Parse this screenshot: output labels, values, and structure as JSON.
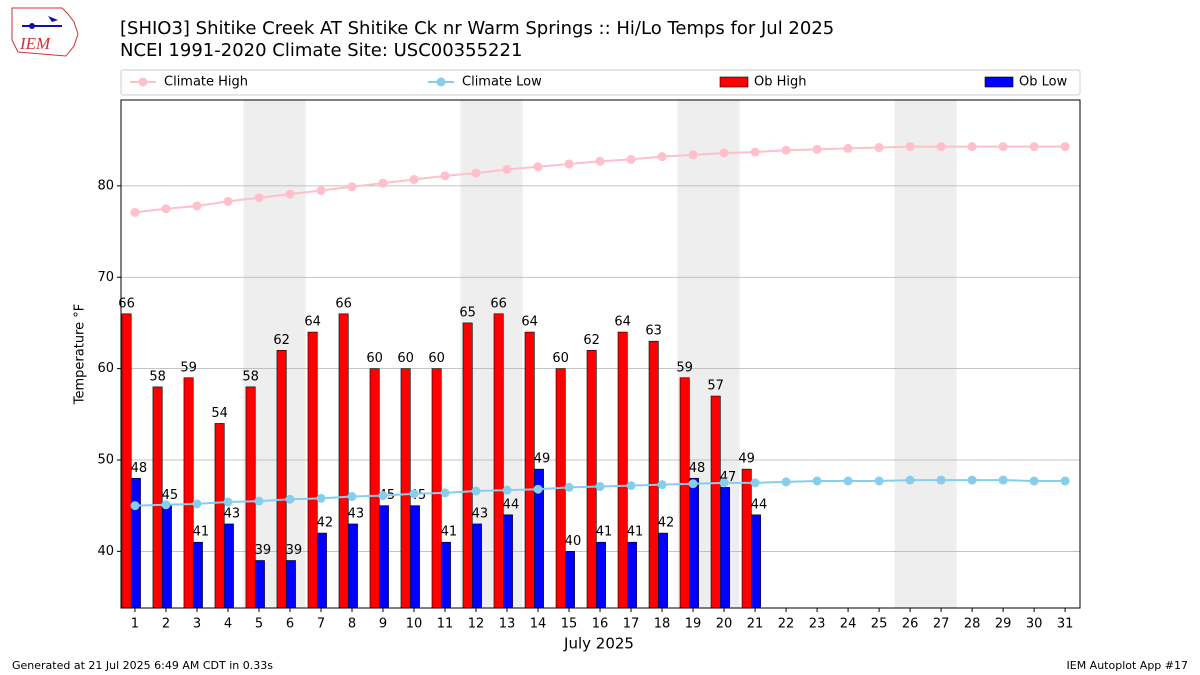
{
  "logo_text": "IEM",
  "chart_data": {
    "type": "bar_line",
    "title": "[SHIO3] Shitike Creek  AT Shitike Ck nr Warm Springs :: Hi/Lo Temps for Jul 2025",
    "subtitle": "NCEI 1991-2020 Climate Site: USC00355221",
    "xlabel": "July 2025",
    "ylabel": "Temperature °F",
    "footer_left": "Generated at 21 Jul 2025 6:49 AM CDT in 0.33s",
    "footer_right": "IEM Autoplot App #17",
    "x": [
      1,
      2,
      3,
      4,
      5,
      6,
      7,
      8,
      9,
      10,
      11,
      12,
      13,
      14,
      15,
      16,
      17,
      18,
      19,
      20,
      21,
      22,
      23,
      24,
      25,
      26,
      27,
      28,
      29,
      30,
      31
    ],
    "xlim": [
      0.55,
      31.48
    ],
    "xticks": [
      1,
      2,
      3,
      4,
      5,
      6,
      7,
      8,
      9,
      10,
      11,
      12,
      13,
      14,
      15,
      16,
      17,
      18,
      19,
      20,
      21,
      22,
      23,
      24,
      25,
      26,
      27,
      28,
      29,
      30,
      31
    ],
    "ylim": [
      33.8,
      89.4
    ],
    "yticks": [
      40,
      50,
      60,
      70,
      80
    ],
    "grid": true,
    "shaded_spans": [
      [
        4.5,
        6.5
      ],
      [
        11.5,
        13.5
      ],
      [
        18.5,
        20.5
      ],
      [
        25.5,
        27.5
      ]
    ],
    "shade_color": "#eeeeee",
    "series": [
      {
        "name": "Climate High",
        "kind": "line",
        "color": "#ffc0cb",
        "values": [
          77.1,
          77.5,
          77.8,
          78.3,
          78.7,
          79.1,
          79.5,
          79.9,
          80.3,
          80.7,
          81.1,
          81.4,
          81.8,
          82.1,
          82.4,
          82.7,
          82.9,
          83.2,
          83.4,
          83.6,
          83.7,
          83.9,
          84.0,
          84.1,
          84.2,
          84.3,
          84.3,
          84.3,
          84.3,
          84.3,
          84.3
        ]
      },
      {
        "name": "Climate Low",
        "kind": "line",
        "color": "#87ceeb",
        "values": [
          45.0,
          45.1,
          45.2,
          45.4,
          45.5,
          45.7,
          45.8,
          46.0,
          46.1,
          46.3,
          46.4,
          46.6,
          46.7,
          46.8,
          47.0,
          47.1,
          47.2,
          47.3,
          47.4,
          47.5,
          47.5,
          47.6,
          47.7,
          47.7,
          47.7,
          47.8,
          47.8,
          47.8,
          47.8,
          47.7,
          47.7
        ]
      },
      {
        "name": "Ob High",
        "kind": "bar",
        "color": "#ff0000",
        "values": [
          66,
          58,
          59,
          54,
          58,
          62,
          64,
          66,
          60,
          60,
          60,
          65,
          66,
          64,
          60,
          62,
          64,
          63,
          59,
          57,
          49,
          null,
          null,
          null,
          null,
          null,
          null,
          null,
          null,
          null,
          null
        ]
      },
      {
        "name": "Ob Low",
        "kind": "bar",
        "color": "#0000ff",
        "values": [
          48,
          45,
          41,
          43,
          39,
          39,
          42,
          43,
          45,
          45,
          41,
          43,
          44,
          49,
          40,
          41,
          41,
          42,
          48,
          47,
          44,
          null,
          null,
          null,
          null,
          null,
          null,
          null,
          null,
          null,
          null
        ]
      }
    ]
  }
}
